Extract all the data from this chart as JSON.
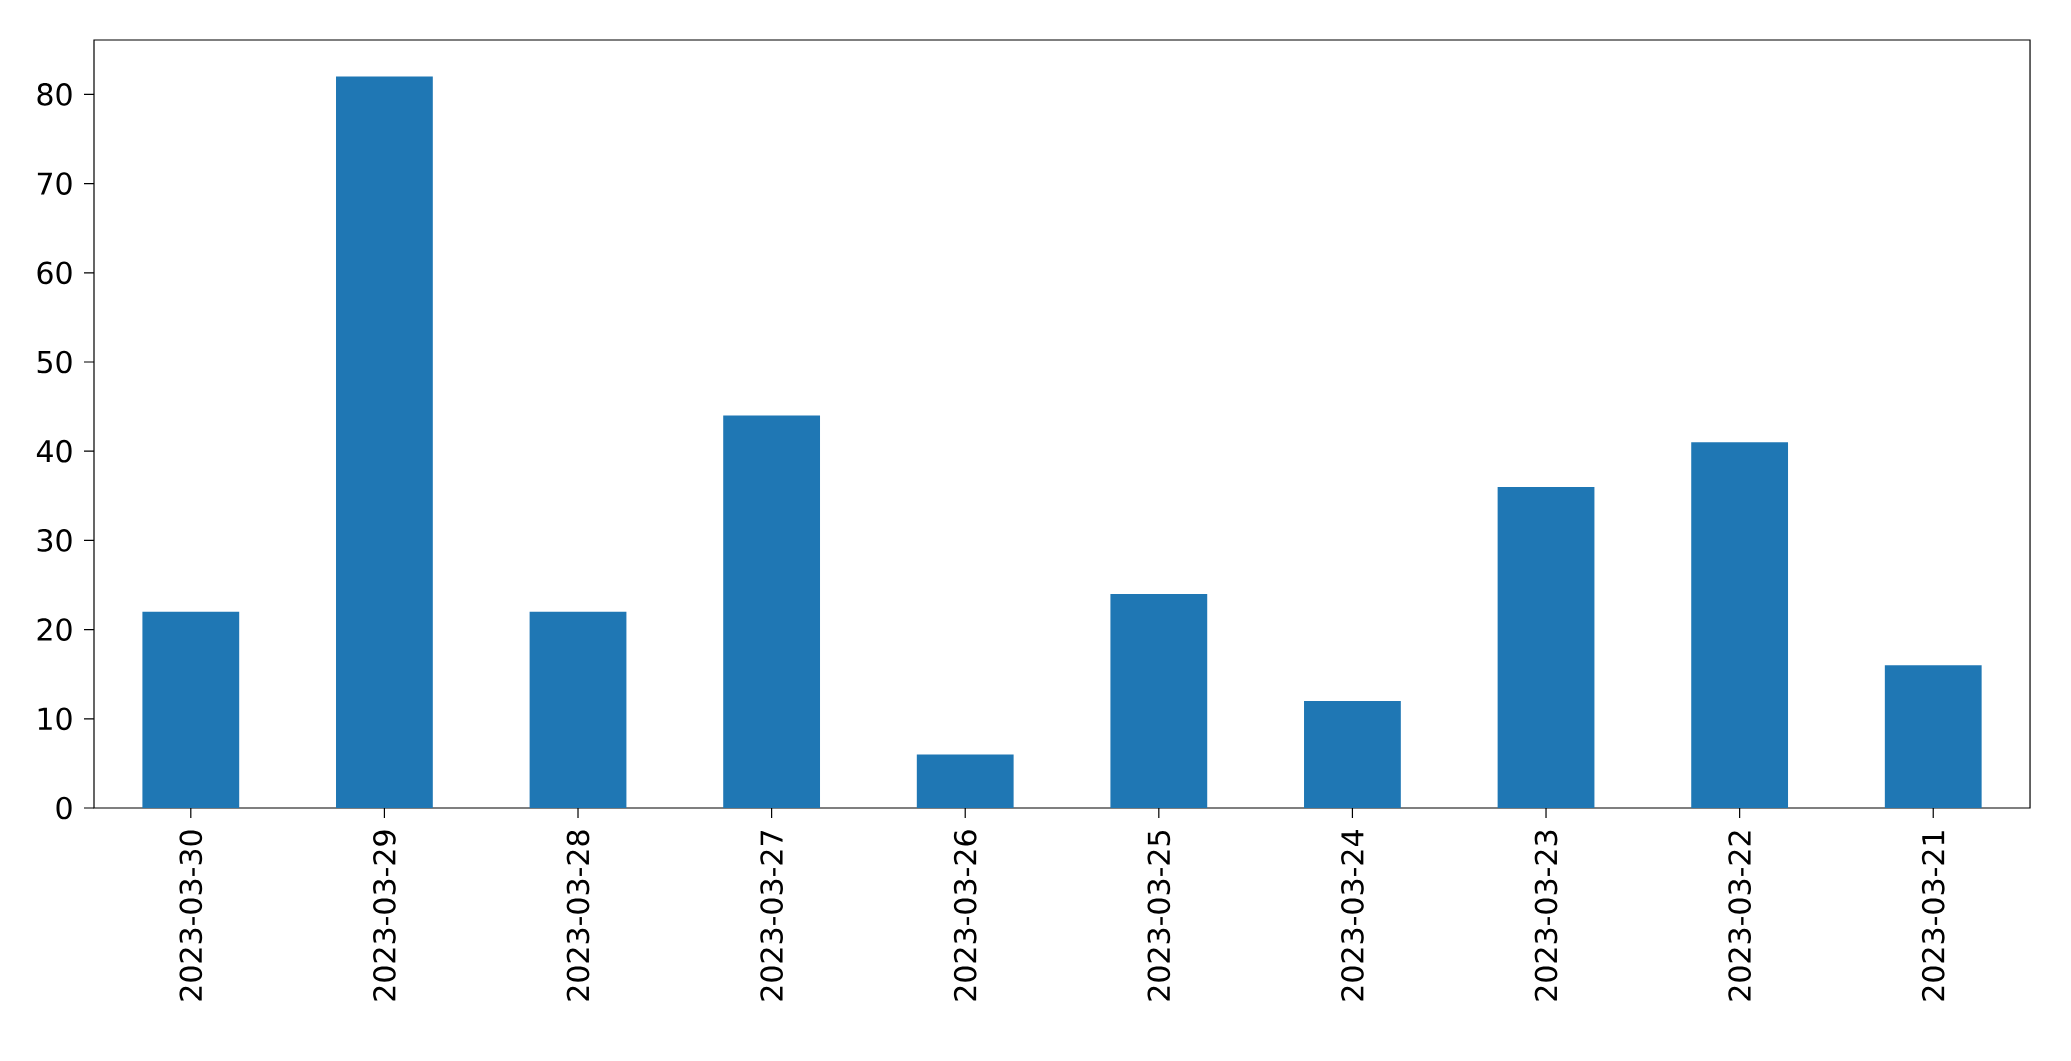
{
  "chart_data": {
    "type": "bar",
    "categories": [
      "2023-03-30",
      "2023-03-29",
      "2023-03-28",
      "2023-03-27",
      "2023-03-26",
      "2023-03-25",
      "2023-03-24",
      "2023-03-23",
      "2023-03-22",
      "2023-03-21"
    ],
    "values": [
      22,
      82,
      22,
      44,
      6,
      24,
      12,
      36,
      41,
      16
    ],
    "color": "#1f77b4",
    "ylim": [
      0,
      86.1
    ],
    "yticks": [
      0,
      10,
      20,
      30,
      40,
      50,
      60,
      70,
      80
    ]
  }
}
